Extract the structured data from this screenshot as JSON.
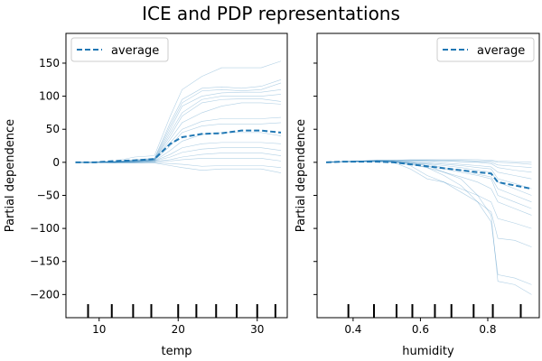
{
  "chart_data": [
    {
      "type": "line",
      "title": "ICE and PDP representations",
      "xlabel": "temp",
      "ylabel": "Partial dependence",
      "xlim": [
        5.8,
        33.8
      ],
      "ylim": [
        -235,
        195
      ],
      "xticks": [
        10,
        20,
        30
      ],
      "yticks": [
        150,
        100,
        50,
        0,
        -50,
        -100,
        -150,
        -200
      ],
      "legend": {
        "position": "top-left",
        "entries": [
          "average"
        ]
      },
      "x": [
        7,
        9.5,
        12,
        14.5,
        17,
        19,
        20.5,
        23,
        25.5,
        28,
        30.5,
        33
      ],
      "ice_lines": [
        [
          0,
          0,
          2,
          8,
          10,
          70,
          110,
          130,
          143,
          143,
          143,
          153
        ],
        [
          0,
          0,
          1,
          4,
          6,
          60,
          95,
          112,
          114,
          112,
          115,
          125
        ],
        [
          0,
          0,
          1,
          3,
          5,
          55,
          90,
          108,
          110,
          108,
          110,
          120
        ],
        [
          0,
          0,
          1,
          2,
          4,
          50,
          85,
          100,
          105,
          106,
          106,
          110
        ],
        [
          0,
          0,
          0,
          2,
          3,
          45,
          75,
          95,
          100,
          100,
          100,
          103
        ],
        [
          0,
          0,
          1,
          2,
          4,
          40,
          70,
          90,
          95,
          96,
          96,
          92
        ],
        [
          0,
          0,
          0,
          1,
          3,
          35,
          60,
          75,
          85,
          90,
          90,
          88
        ],
        [
          0,
          0,
          1,
          3,
          5,
          30,
          50,
          62,
          66,
          66,
          66,
          68
        ],
        [
          0,
          0,
          0,
          2,
          3,
          25,
          45,
          55,
          58,
          58,
          58,
          60
        ],
        [
          0,
          0,
          0,
          1,
          2,
          18,
          32,
          42,
          45,
          45,
          45,
          40
        ],
        [
          0,
          0,
          0,
          1,
          2,
          12,
          22,
          28,
          30,
          30,
          30,
          28
        ],
        [
          0,
          0,
          1,
          1,
          2,
          8,
          15,
          20,
          22,
          22,
          22,
          18
        ],
        [
          0,
          0,
          0,
          0,
          1,
          4,
          8,
          12,
          14,
          14,
          14,
          10
        ],
        [
          0,
          0,
          0,
          0,
          1,
          2,
          4,
          6,
          6,
          6,
          6,
          2
        ],
        [
          0,
          0,
          -1,
          -1,
          0,
          -2,
          -3,
          -6,
          -5,
          -5,
          -5,
          -8
        ],
        [
          0,
          0,
          -1,
          -1,
          -1,
          -5,
          -8,
          -12,
          -10,
          -10,
          -10,
          -16
        ]
      ],
      "average": [
        0,
        0,
        2,
        3,
        5,
        28,
        38,
        43,
        44,
        48,
        48,
        45
      ],
      "rug": [
        8.6,
        11.6,
        14.3,
        16.6,
        20,
        22.3,
        24.8,
        27.4,
        30,
        32.3
      ],
      "colors": {
        "ice": "#1f77b4",
        "average": "#1f77b4"
      }
    },
    {
      "type": "line",
      "xlabel": "humidity",
      "ylabel": "Partial dependence",
      "xlim": [
        0.293,
        0.953
      ],
      "ylim": [
        -235,
        195
      ],
      "xticks": [
        0.4,
        0.6,
        0.8
      ],
      "yticks": [
        150,
        100,
        50,
        0,
        -50,
        -100,
        -150,
        -200
      ],
      "legend": {
        "position": "top-right",
        "entries": [
          "average"
        ]
      },
      "x": [
        0.32,
        0.37,
        0.42,
        0.47,
        0.52,
        0.57,
        0.62,
        0.67,
        0.72,
        0.77,
        0.81,
        0.83,
        0.88,
        0.93
      ],
      "ice_lines": [
        [
          0,
          1,
          2,
          2,
          2,
          0,
          -5,
          -15,
          -25,
          -50,
          -80,
          -180,
          -185,
          -200
        ],
        [
          0,
          1,
          2,
          2,
          1,
          -2,
          -8,
          -20,
          -35,
          -60,
          -90,
          -170,
          -175,
          -185
        ],
        [
          0,
          1,
          2,
          3,
          2,
          -5,
          -20,
          -30,
          -45,
          -60,
          -75,
          -115,
          -118,
          -128
        ],
        [
          0,
          1,
          1,
          2,
          0,
          -10,
          -25,
          -30,
          -40,
          -50,
          -60,
          -85,
          -92,
          -100
        ],
        [
          0,
          1,
          2,
          2,
          1,
          -3,
          -8,
          -15,
          -22,
          -30,
          -40,
          -60,
          -70,
          -80
        ],
        [
          0,
          1,
          1,
          1,
          0,
          -2,
          -5,
          -10,
          -15,
          -20,
          -25,
          -50,
          -60,
          -70
        ],
        [
          0,
          1,
          1,
          1,
          0,
          -1,
          -3,
          -8,
          -12,
          -18,
          -22,
          -40,
          -50,
          -60
        ],
        [
          0,
          1,
          2,
          2,
          1,
          0,
          -2,
          -5,
          -8,
          -12,
          -15,
          -30,
          -40,
          -50
        ],
        [
          0,
          1,
          1,
          1,
          1,
          0,
          -1,
          -3,
          -5,
          -8,
          -10,
          -25,
          -32,
          -40
        ],
        [
          0,
          1,
          2,
          3,
          3,
          2,
          1,
          -1,
          -3,
          -5,
          -7,
          -15,
          -20,
          -25
        ],
        [
          0,
          1,
          2,
          3,
          3,
          3,
          3,
          2,
          1,
          0,
          -2,
          -8,
          -12,
          -15
        ],
        [
          0,
          1,
          1,
          2,
          2,
          2,
          2,
          2,
          1,
          1,
          0,
          -4,
          -6,
          -8
        ],
        [
          0,
          1,
          2,
          2,
          2,
          3,
          3,
          3,
          3,
          2,
          2,
          0,
          -1,
          -3
        ],
        [
          0,
          1,
          2,
          3,
          3,
          4,
          4,
          4,
          4,
          4,
          3,
          2,
          1,
          0
        ]
      ],
      "average": [
        0,
        1,
        1,
        1,
        0,
        -3,
        -6,
        -9,
        -12,
        -15,
        -17,
        -30,
        -35,
        -40
      ],
      "rug": [
        0.386,
        0.462,
        0.529,
        0.576,
        0.643,
        0.692,
        0.758,
        0.815,
        0.898
      ],
      "colors": {
        "ice": "#1f77b4",
        "average": "#1f77b4"
      }
    }
  ]
}
